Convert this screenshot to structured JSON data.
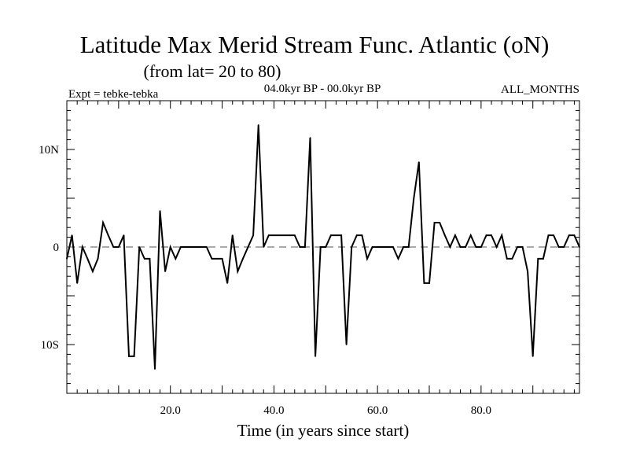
{
  "chart_data": {
    "type": "line",
    "title": "Latitude Max Merid Stream Func. Atlantic (oN)",
    "subtitle": "(from lat= 20 to 80)",
    "expt_label": "Expt = tebke-tebka",
    "period_label": "04.0kyr BP - 00.0kyr BP",
    "months_label": "ALL_MONTHS",
    "xlabel": "Time (in years since start)",
    "ylabel": "",
    "xlim": [
      0,
      99
    ],
    "ylim": [
      -15,
      15
    ],
    "x_ticks": [
      {
        "value": 20,
        "label": "20.0"
      },
      {
        "value": 40,
        "label": "40.0"
      },
      {
        "value": 60,
        "label": "60.0"
      },
      {
        "value": 80,
        "label": "80.0"
      }
    ],
    "y_ticks": [
      {
        "value": 10,
        "label": "10N"
      },
      {
        "value": 0,
        "label": "0"
      },
      {
        "value": -10,
        "label": "10S"
      }
    ],
    "zero_line": true,
    "series": [
      {
        "name": "tebke-tebka",
        "x": [
          0,
          1,
          2,
          3,
          4,
          5,
          6,
          7,
          8,
          9,
          10,
          11,
          12,
          13,
          14,
          15,
          16,
          17,
          18,
          19,
          20,
          21,
          22,
          23,
          24,
          25,
          26,
          27,
          28,
          29,
          30,
          31,
          32,
          33,
          34,
          35,
          36,
          37,
          38,
          39,
          40,
          41,
          42,
          43,
          44,
          45,
          46,
          47,
          48,
          49,
          50,
          51,
          52,
          53,
          54,
          55,
          56,
          57,
          58,
          59,
          60,
          61,
          62,
          63,
          64,
          65,
          66,
          67,
          68,
          69,
          70,
          71,
          72,
          73,
          74,
          75,
          76,
          77,
          78,
          79,
          80,
          81,
          82,
          83,
          84,
          85,
          86,
          87,
          88,
          89,
          90,
          91,
          92,
          93,
          94,
          95,
          96,
          97,
          98,
          99
        ],
        "values": [
          -1.2,
          1.2,
          -3.7,
          0,
          -1.2,
          -2.5,
          -1.2,
          2.5,
          1.2,
          0,
          0,
          1.2,
          -11.2,
          -11.2,
          0,
          -1.2,
          -1.2,
          -12.5,
          3.7,
          -2.5,
          0,
          -1.2,
          0,
          0,
          0,
          0,
          0,
          0,
          -1.2,
          -1.2,
          -1.2,
          -3.7,
          1.2,
          -2.5,
          -1.2,
          0,
          1.2,
          12.5,
          0,
          1.2,
          1.2,
          1.2,
          1.2,
          1.2,
          1.2,
          0,
          0,
          11.2,
          -11.2,
          0,
          0,
          1.2,
          1.2,
          1.2,
          -10,
          0,
          1.2,
          1.2,
          -1.2,
          0,
          0,
          0,
          0,
          0,
          -1.2,
          0,
          0,
          5,
          8.7,
          -3.7,
          -3.7,
          2.5,
          2.5,
          1.2,
          0,
          1.2,
          0,
          0,
          1.2,
          0,
          0,
          1.2,
          1.2,
          0,
          1.2,
          -1.2,
          -1.2,
          0,
          0,
          -2.5,
          -11.2,
          -1.2,
          -1.2,
          1.2,
          1.2,
          0,
          0,
          1.2,
          1.2,
          0
        ]
      }
    ]
  }
}
